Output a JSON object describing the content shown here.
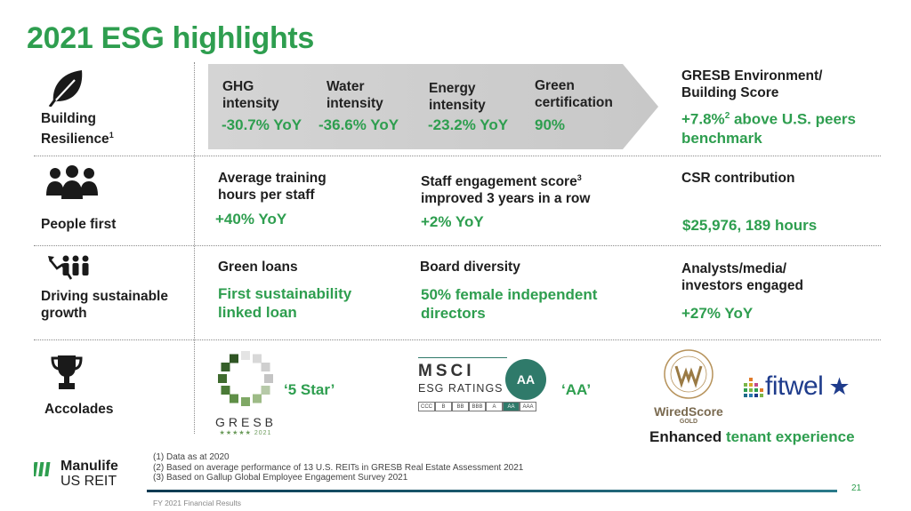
{
  "title": "2021 ESG highlights",
  "rows": {
    "resilience": {
      "label": "Building Resilience",
      "sup": "1",
      "metrics": [
        {
          "label": "GHG intensity",
          "value": "-30.7% YoY"
        },
        {
          "label": "Water intensity",
          "value": "-36.6% YoY"
        },
        {
          "label": "Energy intensity",
          "value": "-23.2% YoY"
        },
        {
          "label": "Green certification",
          "value": "90%"
        }
      ],
      "gresb_title": "GRESB Environment/ Building Score",
      "gresb_value_pre": "+7.8%",
      "gresb_value_sup": "2",
      "gresb_value_post": " above U.S. peers benchmark"
    },
    "people": {
      "label": "People first",
      "c1_label": "Average training hours per staff",
      "c1_value": "+40% YoY",
      "c2_label_pre": "Staff engagement score",
      "c2_label_sup": "3",
      "c2_label_post": " improved 3 years in a row",
      "c2_value": "+2% YoY",
      "c3_label": "CSR contribution",
      "c3_value": "$25,976, 189 hours"
    },
    "growth": {
      "label": "Driving sustainable growth",
      "c1_label": "Green loans",
      "c1_value": "First sustainability linked loan",
      "c2_label": "Board diversity",
      "c2_value": "50% female independent directors",
      "c3_label": "Analysts/media/ investors engaged",
      "c3_value": "+27% YoY"
    },
    "accolades": {
      "label": "Accolades",
      "gresb_rating": "‘5 Star’",
      "gresb_logo": "GRESB",
      "gresb_stars": "★★★★★ 2021",
      "msci_line1": "MSCI",
      "msci_line2": "ESG RATINGS",
      "msci_badge": "AA",
      "msci_rating": "‘AA’",
      "msci_scale": [
        "CCC",
        "B",
        "BB",
        "BBB",
        "A",
        "AA",
        "AAA"
      ],
      "wiredscore": "WiredScore",
      "wiredscore_level": "GOLD",
      "fitwel": "fitwel",
      "tenant_pre": "Enhanced",
      "tenant_post": "tenant experience"
    }
  },
  "footnotes": [
    "(1)  Data as at 2020",
    "(2)  Based on average performance of 13 U.S. REITs in GRESB Real Estate Assessment 2021",
    "(3)  Based on Gallup Global Employee Engagement Survey 2021"
  ],
  "brand": {
    "line1": "Manulife",
    "line2": "US REIT"
  },
  "footer_text": "FY 2021 Financial Results",
  "page_number": "21",
  "colors": {
    "accent": "#2e9e4f",
    "msci": "#2f7a6a",
    "fitwel_star": "#1f3c8c"
  }
}
